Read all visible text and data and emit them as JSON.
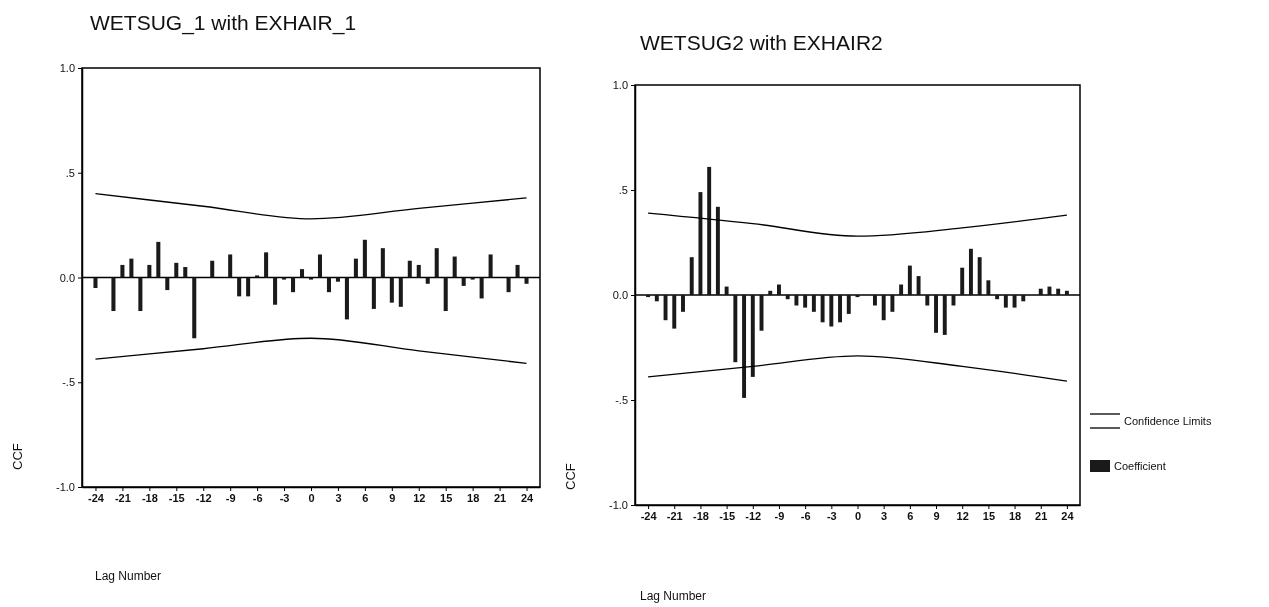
{
  "chart_data": [
    {
      "type": "bar",
      "title": "WETSUG_1 with EXHAIR_1",
      "xlabel": "Lag Number",
      "ylabel": "CCF",
      "x": [
        -24,
        -23,
        -22,
        -21,
        -20,
        -19,
        -18,
        -17,
        -16,
        -15,
        -14,
        -13,
        -12,
        -11,
        -10,
        -9,
        -8,
        -7,
        -6,
        -5,
        -4,
        -3,
        -2,
        -1,
        0,
        1,
        2,
        3,
        4,
        5,
        6,
        7,
        8,
        9,
        10,
        11,
        12,
        13,
        14,
        15,
        16,
        17,
        18,
        19,
        20,
        21,
        22,
        23,
        24
      ],
      "series": [
        {
          "color": "#1a1a1a",
          "values": [
            -0.05,
            0.0,
            -0.16,
            0.06,
            0.09,
            -0.16,
            0.06,
            0.17,
            -0.06,
            0.07,
            0.05,
            -0.29,
            0.0,
            0.08,
            0.0,
            0.11,
            -0.09,
            -0.09,
            0.01,
            0.12,
            -0.13,
            -0.01,
            -0.07,
            0.04,
            -0.01,
            0.11,
            -0.07,
            -0.02,
            -0.2,
            0.09,
            0.18,
            -0.15,
            0.14,
            -0.12,
            -0.14,
            0.08,
            0.06,
            -0.03,
            0.14,
            -0.16,
            0.1,
            -0.04,
            -0.01,
            -0.1,
            0.11,
            0.0,
            -0.07,
            0.06,
            -0.03
          ]
        },
        {
          "type": "line",
          "color": "#000000",
          "x": [
            -24,
            -12,
            0,
            12,
            24
          ],
          "values": [
            0.4,
            0.34,
            0.28,
            0.33,
            0.38
          ]
        },
        {
          "type": "line",
          "color": "#000000",
          "x": [
            -24,
            -12,
            0,
            12,
            24
          ],
          "values": [
            -0.39,
            -0.34,
            -0.29,
            -0.35,
            -0.41
          ]
        }
      ],
      "xlim": [
        -25.5,
        25.5
      ],
      "ylim": [
        -1,
        1
      ],
      "xticks": [
        -24,
        -21,
        -18,
        -15,
        -12,
        -9,
        -6,
        -3,
        0,
        3,
        6,
        9,
        12,
        15,
        18,
        21,
        24
      ],
      "yticks": [
        {
          "value": -1,
          "label": "-1.0"
        },
        {
          "value": -0.5,
          "label": "-.5"
        },
        {
          "value": 0,
          "label": "0.0"
        },
        {
          "value": 0.5,
          "label": ".5"
        },
        {
          "value": 1,
          "label": "1.0"
        }
      ],
      "ref_lines": [
        {
          "axis": "y",
          "value": 0
        }
      ],
      "grid": false,
      "legend": false
    },
    {
      "type": "bar",
      "title": "WETSUG2 with EXHAIR2",
      "xlabel": "Lag Number",
      "ylabel": "CCF",
      "x": [
        -24,
        -23,
        -22,
        -21,
        -20,
        -19,
        -18,
        -17,
        -16,
        -15,
        -14,
        -13,
        -12,
        -11,
        -10,
        -9,
        -8,
        -7,
        -6,
        -5,
        -4,
        -3,
        -2,
        -1,
        0,
        1,
        2,
        3,
        4,
        5,
        6,
        7,
        8,
        9,
        10,
        11,
        12,
        13,
        14,
        15,
        16,
        17,
        18,
        19,
        20,
        21,
        22,
        23,
        24
      ],
      "series": [
        {
          "name": "Coefficient",
          "color": "#1a1a1a",
          "values": [
            -0.01,
            -0.03,
            -0.12,
            -0.16,
            -0.08,
            0.18,
            0.49,
            0.61,
            0.42,
            0.04,
            -0.32,
            -0.49,
            -0.39,
            -0.17,
            0.02,
            0.05,
            -0.02,
            -0.05,
            -0.06,
            -0.08,
            -0.13,
            -0.15,
            -0.13,
            -0.09,
            -0.01,
            0.0,
            -0.05,
            -0.12,
            -0.08,
            0.05,
            0.14,
            0.09,
            -0.05,
            -0.18,
            -0.19,
            -0.05,
            0.13,
            0.22,
            0.18,
            0.07,
            -0.02,
            -0.06,
            -0.06,
            -0.03,
            0.0,
            0.03,
            0.04,
            0.03,
            0.02
          ]
        },
        {
          "type": "line",
          "name": "Confidence Limits",
          "color": "#000000",
          "x": [
            -24,
            -12,
            0,
            12,
            24
          ],
          "values": [
            0.39,
            0.34,
            0.28,
            0.32,
            0.38
          ]
        },
        {
          "type": "line",
          "color": "#000000",
          "x": [
            -24,
            -12,
            0,
            12,
            24
          ],
          "values": [
            -0.39,
            -0.34,
            -0.29,
            -0.34,
            -0.41
          ]
        }
      ],
      "xlim": [
        -25.5,
        25.5
      ],
      "ylim": [
        -1,
        1
      ],
      "xticks": [
        -24,
        -21,
        -18,
        -15,
        -12,
        -9,
        -6,
        -3,
        0,
        3,
        6,
        9,
        12,
        15,
        18,
        21,
        24
      ],
      "yticks": [
        {
          "value": -1,
          "label": "-1.0"
        },
        {
          "value": -0.5,
          "label": "-.5"
        },
        {
          "value": 0,
          "label": "0.0"
        },
        {
          "value": 0.5,
          "label": ".5"
        },
        {
          "value": 1,
          "label": "1.0"
        }
      ],
      "ref_lines": [
        {
          "axis": "y",
          "value": 0
        }
      ],
      "grid": false,
      "legend": "right"
    }
  ]
}
